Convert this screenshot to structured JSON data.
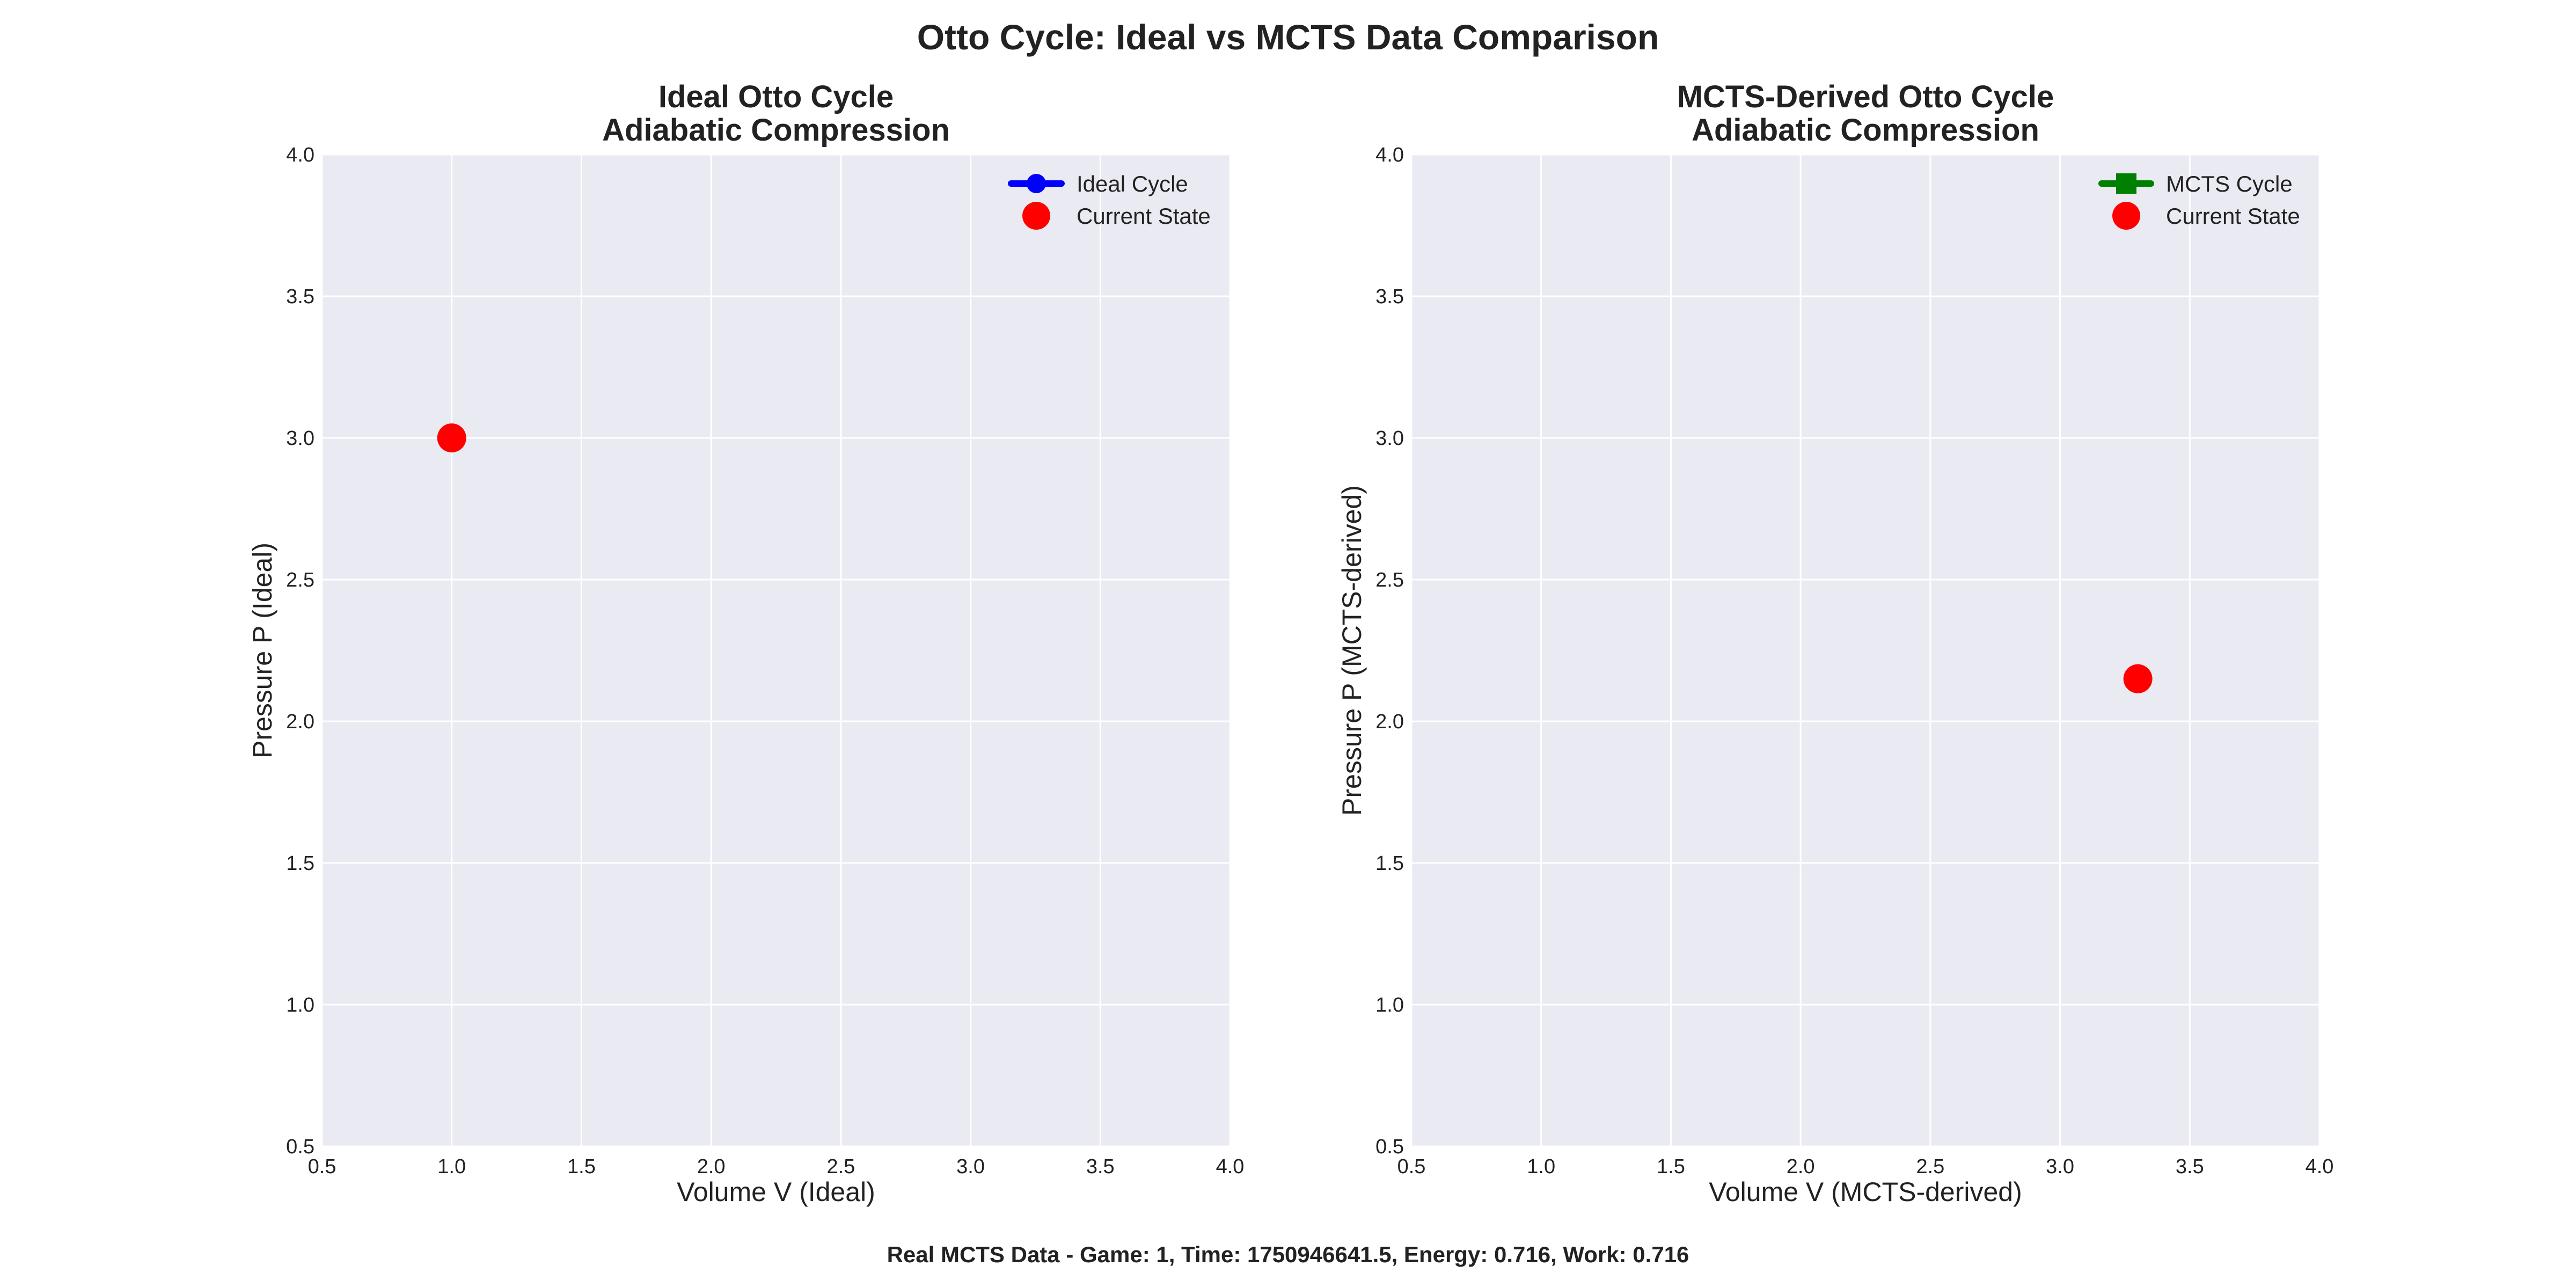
{
  "figure": {
    "suptitle": "Otto Cycle: Ideal vs MCTS Data Comparison",
    "footer": "Real MCTS Data - Game: 1, Time: 1750946641.5, Energy: 0.716, Work: 0.716"
  },
  "colors": {
    "plot_background": "#eaeaf2",
    "grid": "#ffffff",
    "current_state": "#ff0000",
    "ideal_cycle": "#0000ff",
    "mcts_cycle": "#008000"
  },
  "chart_data": [
    {
      "type": "scatter",
      "title_line1": "Ideal Otto Cycle",
      "title_line2": "Adiabatic Compression",
      "xlabel": "Volume V (Ideal)",
      "ylabel": "Pressure P (Ideal)",
      "xlim": [
        0.5,
        4.0
      ],
      "ylim": [
        0.5,
        4.0
      ],
      "xticks": [
        0.5,
        1.0,
        1.5,
        2.0,
        2.5,
        3.0,
        3.5,
        4.0
      ],
      "yticks": [
        0.5,
        1.0,
        1.5,
        2.0,
        2.5,
        3.0,
        3.5,
        4.0
      ],
      "tick_labels_x": [
        "0.5",
        "1.0",
        "1.5",
        "2.0",
        "2.5",
        "3.0",
        "3.5",
        "4.0"
      ],
      "tick_labels_y": [
        "0.5",
        "1.0",
        "1.5",
        "2.0",
        "2.5",
        "3.0",
        "3.5",
        "4.0"
      ],
      "grid": true,
      "legend_position": "top-right",
      "legend": [
        {
          "label": "Ideal Cycle",
          "marker": "circle-line",
          "color": "#0000ff"
        },
        {
          "label": "Current State",
          "marker": "circle",
          "color": "#ff0000"
        }
      ],
      "series": [
        {
          "name": "Ideal Cycle",
          "x": [],
          "y": [],
          "color": "#0000ff"
        },
        {
          "name": "Current State",
          "x": [
            1.0
          ],
          "y": [
            3.0
          ],
          "color": "#ff0000"
        }
      ]
    },
    {
      "type": "scatter",
      "title_line1": "MCTS-Derived Otto Cycle",
      "title_line2": "Adiabatic Compression",
      "xlabel": "Volume V (MCTS-derived)",
      "ylabel": "Pressure P (MCTS-derived)",
      "xlim": [
        0.5,
        4.0
      ],
      "ylim": [
        0.5,
        4.0
      ],
      "xticks": [
        0.5,
        1.0,
        1.5,
        2.0,
        2.5,
        3.0,
        3.5,
        4.0
      ],
      "yticks": [
        0.5,
        1.0,
        1.5,
        2.0,
        2.5,
        3.0,
        3.5,
        4.0
      ],
      "tick_labels_x": [
        "0.5",
        "1.0",
        "1.5",
        "2.0",
        "2.5",
        "3.0",
        "3.5",
        "4.0"
      ],
      "tick_labels_y": [
        "0.5",
        "1.0",
        "1.5",
        "2.0",
        "2.5",
        "3.0",
        "3.5",
        "4.0"
      ],
      "grid": true,
      "legend_position": "top-right",
      "legend": [
        {
          "label": "MCTS Cycle",
          "marker": "square-line",
          "color": "#008000"
        },
        {
          "label": "Current State",
          "marker": "circle",
          "color": "#ff0000"
        }
      ],
      "series": [
        {
          "name": "MCTS Cycle",
          "x": [],
          "y": [],
          "color": "#008000"
        },
        {
          "name": "Current State",
          "x": [
            3.3
          ],
          "y": [
            2.15
          ],
          "color": "#ff0000"
        }
      ]
    }
  ]
}
